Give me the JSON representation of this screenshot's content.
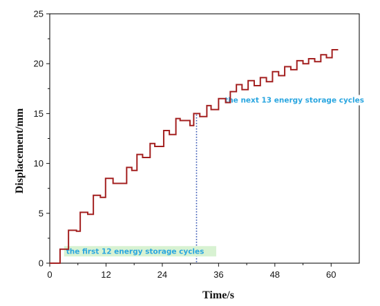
{
  "chart_data": {
    "type": "line",
    "title": "",
    "xlabel": "Time/s",
    "ylabel": "Displacement/mm",
    "xlim": [
      0,
      66
    ],
    "ylim": [
      0,
      25
    ],
    "xticks": [
      0,
      12,
      24,
      36,
      48,
      60
    ],
    "yticks": [
      0,
      5,
      10,
      15,
      20,
      25
    ],
    "grid": false,
    "series": [
      {
        "color": "#a31f1f",
        "x": [
          0,
          2.2,
          2.2,
          4.0,
          4.0,
          5.7,
          5.7,
          6.5,
          6.5,
          8.1,
          8.1,
          9.3,
          9.3,
          10.8,
          10.8,
          11.9,
          11.9,
          13.5,
          13.5,
          16.4,
          16.4,
          17.5,
          17.5,
          18.6,
          18.6,
          19.8,
          19.8,
          21.4,
          21.4,
          22.4,
          22.4,
          24.3,
          24.3,
          25.5,
          25.5,
          26.9,
          26.9,
          27.8,
          27.8,
          29.9,
          29.9,
          30.7,
          30.7,
          32.0,
          32.0,
          33.5,
          33.5,
          34.4,
          34.4,
          36.0,
          36.0,
          37.5,
          37.5,
          38.5,
          38.5,
          39.8,
          39.8,
          41.0,
          41.0,
          42.3,
          42.3,
          43.6,
          43.6,
          44.9,
          44.9,
          46.2,
          46.2,
          47.5,
          47.5,
          48.8,
          48.8,
          50.1,
          50.1,
          51.4,
          51.4,
          52.7,
          52.7,
          54.0,
          54.0,
          55.2,
          55.2,
          56.5,
          56.5,
          57.8,
          57.8,
          59.0,
          59.0,
          60.2,
          60.2,
          61.5
        ],
        "y": [
          0,
          0,
          1.4,
          1.4,
          3.3,
          3.3,
          3.2,
          3.2,
          5.1,
          5.1,
          4.9,
          4.9,
          6.8,
          6.8,
          6.6,
          6.6,
          8.5,
          8.5,
          8.0,
          8.0,
          9.6,
          9.6,
          9.3,
          9.3,
          10.9,
          10.9,
          10.6,
          10.6,
          12.0,
          12.0,
          11.7,
          11.7,
          13.3,
          13.3,
          12.9,
          12.9,
          14.5,
          14.5,
          14.3,
          14.3,
          13.8,
          13.8,
          15.0,
          15.0,
          14.7,
          14.7,
          15.8,
          15.8,
          15.4,
          15.4,
          16.5,
          16.5,
          16.1,
          16.1,
          17.2,
          17.2,
          17.9,
          17.9,
          17.4,
          17.4,
          18.3,
          18.3,
          17.8,
          17.8,
          18.6,
          18.6,
          18.2,
          18.2,
          19.2,
          19.2,
          18.8,
          18.8,
          19.7,
          19.7,
          19.4,
          19.4,
          20.3,
          20.3,
          20.0,
          20.0,
          20.5,
          20.5,
          20.2,
          20.2,
          20.9,
          20.9,
          20.6,
          20.6,
          21.4,
          21.4
        ]
      }
    ],
    "annotations": [
      {
        "text": "the first 12 energy storage cycles",
        "x": 3.5,
        "y": 0.95,
        "color": "#2aa6e0",
        "background": "#d8f2d2"
      },
      {
        "text": "the next 13 energy storage cycles",
        "x": 37.3,
        "y": 16.1,
        "color": "#2aa6e0",
        "background": "#ffffff"
      }
    ],
    "divider": {
      "x": 31.3,
      "y_top": 14.9,
      "color": "#2f4fb0"
    }
  }
}
